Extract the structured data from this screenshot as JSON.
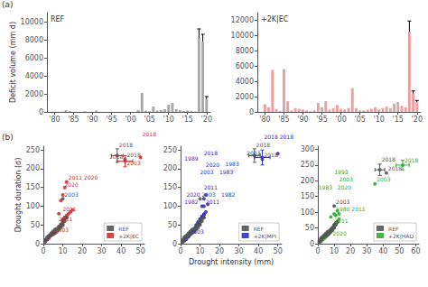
{
  "chart_data": [
    {
      "type": "bar",
      "title": "(a)",
      "annotations": [
        {
          "text": "REF"
        }
      ],
      "x": [
        1980,
        1981,
        1982,
        1983,
        1984,
        1985,
        1986,
        1987,
        1988,
        1989,
        1990,
        1991,
        1992,
        1993,
        1994,
        1995,
        1996,
        1997,
        1998,
        1999,
        2000,
        2001,
        2002,
        2003,
        2004,
        2005,
        2006,
        2007,
        2008,
        2009,
        2010,
        2011,
        2012,
        2013,
        2014,
        2015,
        2016,
        2017,
        2018,
        2019,
        2020
      ],
      "values": [
        30,
        20,
        30,
        200,
        80,
        20,
        10,
        10,
        80,
        20,
        10,
        150,
        20,
        10,
        10,
        10,
        10,
        10,
        10,
        10,
        10,
        10,
        200,
        2100,
        150,
        80,
        600,
        150,
        200,
        300,
        800,
        1000,
        300,
        200,
        100,
        150,
        100,
        50,
        8200,
        7800,
        1400
      ],
      "errors": [
        0,
        0,
        0,
        0,
        0,
        0,
        0,
        0,
        0,
        0,
        0,
        0,
        0,
        0,
        0,
        0,
        0,
        0,
        0,
        0,
        0,
        0,
        0,
        0,
        0,
        0,
        0,
        0,
        0,
        0,
        0,
        0,
        0,
        0,
        0,
        0,
        0,
        0,
        1000,
        800,
        300
      ],
      "color": "#aaaaaa",
      "xlim": [
        1978,
        2021
      ],
      "xticks": [
        {
          "value": 1980,
          "label": "'80"
        },
        {
          "value": 1985,
          "label": "'85"
        },
        {
          "value": 1990,
          "label": "'90"
        },
        {
          "value": 1995,
          "label": "'95"
        },
        {
          "value": 2000,
          "label": "'00"
        },
        {
          "value": 2005,
          "label": "'05"
        },
        {
          "value": 2010,
          "label": "'10"
        },
        {
          "value": 2015,
          "label": "'15"
        },
        {
          "value": 2020,
          "label": "'20"
        }
      ],
      "ylim": [
        0,
        11000
      ],
      "yticks": [
        0,
        2000,
        4000,
        6000,
        8000,
        10000
      ],
      "ylabel": "Deficit volume (mm d)",
      "grid": false
    },
    {
      "type": "bar",
      "annotations": [
        {
          "text": "+2K|EC"
        }
      ],
      "x": [
        1980,
        1981,
        1982,
        1983,
        1984,
        1985,
        1986,
        1987,
        1988,
        1989,
        1990,
        1991,
        1992,
        1993,
        1994,
        1995,
        1996,
        1997,
        1998,
        1999,
        2000,
        2001,
        2002,
        2003,
        2004,
        2005,
        2006,
        2007,
        2008,
        2009,
        2010,
        2011,
        2012,
        2013,
        2014,
        2015,
        2016,
        2017,
        2018,
        2019,
        2020
      ],
      "values": [
        1000,
        600,
        5500,
        400,
        100,
        5600,
        1400,
        200,
        500,
        400,
        300,
        200,
        100,
        200,
        1200,
        600,
        1400,
        300,
        500,
        900,
        400,
        300,
        500,
        3100,
        500,
        200,
        200,
        300,
        400,
        600,
        300,
        500,
        700,
        500,
        1100,
        1300,
        800,
        600,
        10500,
        2400,
        1300
      ],
      "errors": [
        0,
        0,
        0,
        0,
        0,
        0,
        0,
        0,
        0,
        0,
        0,
        0,
        0,
        0,
        0,
        0,
        0,
        0,
        0,
        0,
        0,
        0,
        0,
        0,
        0,
        0,
        0,
        0,
        0,
        0,
        0,
        0,
        0,
        0,
        0,
        0,
        0,
        0,
        1400,
        350,
        200
      ],
      "color": "#e8a0a0",
      "xlim": [
        1978,
        2021
      ],
      "xticks": [
        {
          "value": 1980,
          "label": "'80"
        },
        {
          "value": 1985,
          "label": "'85"
        },
        {
          "value": 1990,
          "label": "'90"
        },
        {
          "value": 1995,
          "label": "'95"
        },
        {
          "value": 2000,
          "label": "'00"
        },
        {
          "value": 2005,
          "label": "'05"
        },
        {
          "value": 2010,
          "label": "'10"
        },
        {
          "value": 2015,
          "label": "'15"
        },
        {
          "value": 2020,
          "label": "'20"
        }
      ],
      "ylim": [
        0,
        13000
      ],
      "yticks": [
        0,
        2000,
        4000,
        6000,
        8000,
        10000,
        12000
      ],
      "grid": false
    },
    {
      "type": "scatter",
      "title": "(b)",
      "xlim": [
        0,
        52
      ],
      "xticks": [
        0,
        10,
        20,
        30,
        40,
        50
      ],
      "ylim": [
        0,
        260
      ],
      "yticks": [
        0,
        50,
        100,
        150,
        200,
        250
      ],
      "ylabel": "Drought duration (d)",
      "grid": false,
      "legend": "lower right",
      "series": [
        {
          "name": "REF",
          "color": "#555555",
          "x": [
            1,
            1,
            1,
            2,
            2,
            2,
            3,
            3,
            4,
            4,
            5,
            5,
            6,
            6,
            7,
            8,
            9,
            10,
            10,
            11,
            12,
            2,
            3,
            4,
            5,
            6,
            7,
            8,
            9,
            10,
            11,
            12,
            10,
            38,
            42
          ],
          "values": [
            5,
            8,
            10,
            12,
            15,
            18,
            20,
            22,
            25,
            28,
            30,
            33,
            35,
            38,
            40,
            45,
            50,
            55,
            60,
            65,
            70,
            15,
            20,
            22,
            25,
            28,
            32,
            38,
            43,
            50,
            60,
            70,
            120,
            235,
            225
          ],
          "error_bar": {
            "x": 38,
            "y": 235,
            "xerr": 3,
            "yerr": 18
          },
          "annotations": [
            {
              "x": 10,
              "y": 120,
              "text": "2003"
            },
            {
              "x": 42,
              "y": 225,
              "text": "2018"
            },
            {
              "x": 38,
              "y": 235,
              "text": "2018"
            }
          ]
        },
        {
          "name": "+2K|EC",
          "color": "#cc3333",
          "x": [
            1,
            2,
            2,
            3,
            3,
            4,
            5,
            6,
            7,
            8,
            9,
            10,
            10,
            10,
            11,
            12,
            13,
            14,
            15,
            3,
            4,
            5,
            6,
            7,
            8,
            9,
            10,
            11,
            8,
            9,
            10,
            11,
            12,
            42,
            50
          ],
          "values": [
            8,
            10,
            12,
            15,
            18,
            22,
            25,
            30,
            35,
            40,
            45,
            50,
            60,
            65,
            70,
            75,
            80,
            85,
            90,
            20,
            25,
            28,
            32,
            38,
            45,
            52,
            60,
            70,
            80,
            115,
            130,
            150,
            165,
            220,
            230
          ],
          "error_bar": {
            "x": 42,
            "y": 220,
            "xerr": 4,
            "yerr": 15
          },
          "annotations": [
            {
              "x": 12,
              "y": 165,
              "text": "2011"
            },
            {
              "x": 42,
              "y": 220,
              "text": "2003"
            },
            {
              "x": 50,
              "y": 230,
              "text": "2018"
            },
            {
              "x": 12,
              "y": 165,
              "text": "2020"
            },
            {
              "x": 10,
              "y": 130,
              "text": "2020"
            },
            {
              "x": 9,
              "y": 80,
              "text": "2011"
            },
            {
              "x": 7,
              "y": 55,
              "text": "2011"
            },
            {
              "x": 42,
              "y": 220,
              "text": "2018"
            },
            {
              "x": 5,
              "y": 25,
              "text": "2003"
            }
          ]
        }
      ]
    },
    {
      "type": "scatter",
      "xlim": [
        0,
        52
      ],
      "xticks": [
        0,
        10,
        20,
        30,
        40,
        50
      ],
      "ylim": [
        0,
        260
      ],
      "yticks": [
        0,
        50,
        100,
        150,
        200,
        250
      ],
      "xlabel": "Drought intensity (mm)",
      "grid": false,
      "legend": "lower right",
      "series": [
        {
          "name": "REF",
          "color": "#555555",
          "x": [
            1,
            1,
            1,
            2,
            2,
            2,
            3,
            3,
            4,
            4,
            5,
            5,
            6,
            6,
            7,
            8,
            9,
            10,
            10,
            11,
            12,
            2,
            3,
            4,
            5,
            6,
            7,
            8,
            9,
            10,
            11,
            12,
            10,
            38,
            42
          ],
          "values": [
            5,
            8,
            10,
            12,
            15,
            18,
            20,
            22,
            25,
            28,
            30,
            33,
            35,
            38,
            40,
            45,
            50,
            55,
            60,
            65,
            70,
            15,
            20,
            22,
            25,
            28,
            32,
            38,
            43,
            50,
            60,
            70,
            120,
            235,
            225
          ],
          "error_bar": {
            "x": 38,
            "y": 235,
            "xerr": 3,
            "yerr": 18
          },
          "annotations": [
            {
              "x": 10,
              "y": 120,
              "text": "2003"
            },
            {
              "x": 42,
              "y": 225,
              "text": "2018"
            },
            {
              "x": 38,
              "y": 235,
              "text": "2018"
            }
          ]
        },
        {
          "name": "+2K|MPI",
          "color": "#3333bb",
          "x": [
            1,
            2,
            3,
            4,
            5,
            6,
            7,
            8,
            9,
            10,
            11,
            12,
            13,
            6,
            7,
            8,
            9,
            10,
            11,
            4,
            5,
            6,
            7,
            8,
            9,
            10,
            11,
            12,
            11,
            12,
            13,
            14,
            12,
            42,
            50
          ],
          "values": [
            5,
            8,
            12,
            18,
            25,
            32,
            40,
            50,
            58,
            65,
            72,
            78,
            85,
            30,
            38,
            45,
            55,
            65,
            72,
            20,
            25,
            30,
            35,
            42,
            50,
            58,
            68,
            78,
            100,
            120,
            130,
            105,
            100,
            230,
            240
          ],
          "error_bar": {
            "x": 42,
            "y": 230,
            "xerr": 4,
            "yerr": 20
          },
          "annotations": [
            {
              "x": 12,
              "y": 120,
              "text": "1982"
            },
            {
              "x": 12,
              "y": 100,
              "text": "2011"
            },
            {
              "x": 42,
              "y": 230,
              "text": "2003"
            },
            {
              "x": 50,
              "y": 240,
              "text": "2018"
            },
            {
              "x": 11,
              "y": 230,
              "text": "2018"
            },
            {
              "x": 42,
              "y": 240,
              "text": "2018"
            },
            {
              "x": 12,
              "y": 215,
              "text": "2020"
            },
            {
              "x": 10,
              "y": 215,
              "text": "1989"
            },
            {
              "x": 14,
              "y": 200,
              "text": "1983"
            },
            {
              "x": 9,
              "y": 180,
              "text": "2003"
            },
            {
              "x": 11,
              "y": 180,
              "text": "1983"
            },
            {
              "x": 11,
              "y": 120,
              "text": "2020"
            },
            {
              "x": 10,
              "y": 100,
              "text": "1982"
            },
            {
              "x": 11,
              "y": 105,
              "text": "2011"
            },
            {
              "x": 4,
              "y": 20,
              "text": "2003"
            }
          ]
        }
      ]
    },
    {
      "type": "scatter",
      "xlim": [
        0,
        62
      ],
      "xticks": [
        0,
        10,
        20,
        30,
        40,
        50,
        60
      ],
      "ylim": [
        0,
        310
      ],
      "yticks": [
        0,
        50,
        100,
        150,
        200,
        250,
        300
      ],
      "grid": false,
      "legend": "lower right",
      "series": [
        {
          "name": "REF",
          "color": "#555555",
          "x": [
            1,
            1,
            1,
            2,
            2,
            2,
            3,
            3,
            4,
            4,
            5,
            5,
            6,
            6,
            7,
            8,
            9,
            10,
            10,
            11,
            12,
            2,
            3,
            4,
            5,
            6,
            7,
            8,
            9,
            10,
            11,
            12,
            10,
            38,
            42
          ],
          "values": [
            5,
            8,
            10,
            12,
            15,
            18,
            20,
            22,
            25,
            28,
            30,
            33,
            35,
            38,
            40,
            45,
            50,
            55,
            60,
            65,
            70,
            15,
            20,
            22,
            25,
            28,
            32,
            38,
            43,
            50,
            60,
            70,
            120,
            235,
            225
          ],
          "error_bar": {
            "x": 38,
            "y": 235,
            "xerr": 3,
            "yerr": 18
          },
          "annotations": [
            {
              "x": 10,
              "y": 120,
              "text": "2003"
            },
            {
              "x": 42,
              "y": 225,
              "text": "2018"
            },
            {
              "x": 38,
              "y": 235,
              "text": "2018"
            }
          ]
        },
        {
          "name": "+2K|HAD",
          "color": "#33aa33",
          "x": [
            1,
            2,
            3,
            4,
            5,
            6,
            7,
            8,
            9,
            10,
            11,
            12,
            13,
            6,
            7,
            8,
            9,
            10,
            11,
            4,
            5,
            6,
            7,
            8,
            9,
            10,
            11,
            12,
            11,
            12,
            13,
            8,
            10,
            35,
            52
          ],
          "values": [
            5,
            8,
            12,
            18,
            25,
            32,
            38,
            45,
            52,
            58,
            65,
            70,
            78,
            28,
            35,
            42,
            50,
            58,
            65,
            18,
            22,
            28,
            33,
            38,
            45,
            52,
            60,
            68,
            90,
            105,
            95,
            85,
            95,
            190,
            250
          ],
          "error_bar": {
            "x": 52,
            "y": 250,
            "xerr": 4,
            "yerr": 15
          },
          "annotations": [
            {
              "x": 10,
              "y": 95,
              "text": "1980"
            },
            {
              "x": 35,
              "y": 190,
              "text": "2003"
            },
            {
              "x": 52,
              "y": 250,
              "text": "2018"
            },
            {
              "x": 12,
              "y": 190,
              "text": "2003"
            },
            {
              "x": 11,
              "y": 185,
              "text": "2020"
            },
            {
              "x": 9,
              "y": 175,
              "text": "1993"
            },
            {
              "x": 10,
              "y": 165,
              "text": "1983"
            },
            {
              "x": 10,
              "y": 95,
              "text": "2011"
            },
            {
              "x": 9,
              "y": 80,
              "text": "2011"
            },
            {
              "x": 8,
              "y": 120,
              "text": "2020"
            }
          ]
        }
      ]
    }
  ]
}
